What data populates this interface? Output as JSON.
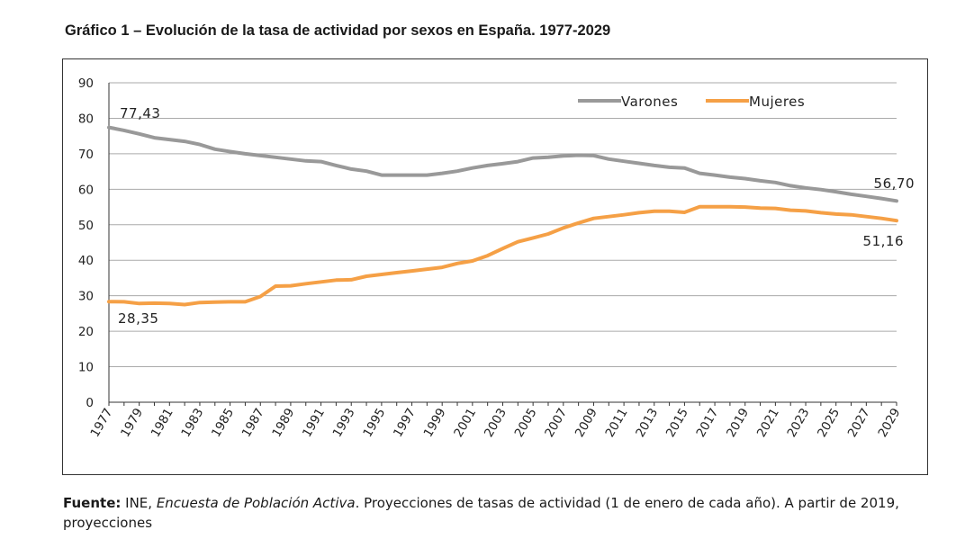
{
  "header": {
    "title": "Gráfico 1 – Evolución de la tasa de actividad por sexos en España. 1977-2029"
  },
  "footer": {
    "source_label": "Fuente:",
    "source_text_1": " INE, ",
    "source_italic": "Encuesta de Población Activa",
    "source_text_2": ". Proyecciones de tasas de actividad (1 de enero de cada año). A partir de 2019, proyecciones"
  },
  "colors": {
    "varones": "#999999",
    "mujeres": "#f5a046",
    "grid": "#aaaaaa",
    "axis": "#333333"
  },
  "chart_data": {
    "type": "line",
    "title": "",
    "xlabel": "",
    "ylabel": "",
    "ylim": [
      0,
      90
    ],
    "yticks": [
      0,
      10,
      20,
      30,
      40,
      50,
      60,
      70,
      80,
      90
    ],
    "grid": true,
    "legend_placement": "top-right",
    "x": [
      1977,
      1978,
      1979,
      1980,
      1981,
      1982,
      1983,
      1984,
      1985,
      1986,
      1987,
      1988,
      1989,
      1990,
      1991,
      1992,
      1993,
      1994,
      1995,
      1996,
      1997,
      1998,
      1999,
      2000,
      2001,
      2002,
      2003,
      2004,
      2005,
      2006,
      2007,
      2008,
      2009,
      2010,
      2011,
      2012,
      2013,
      2014,
      2015,
      2016,
      2017,
      2018,
      2019,
      2020,
      2021,
      2022,
      2023,
      2024,
      2025,
      2026,
      2027,
      2028,
      2029
    ],
    "xtick_labels": [
      "1977",
      "1979",
      "1981",
      "1983",
      "1985",
      "1987",
      "1989",
      "1991",
      "1993",
      "1995",
      "1997",
      "1999",
      "2001",
      "2003",
      "2005",
      "2007",
      "2009",
      "2011",
      "2013",
      "2015",
      "2017",
      "2019",
      "2021",
      "2023",
      "2025",
      "2027",
      "2029"
    ],
    "series": [
      {
        "name": "Varones",
        "values": [
          77.43,
          76.6,
          75.6,
          74.5,
          74.0,
          73.5,
          72.6,
          71.3,
          70.6,
          70.0,
          69.5,
          69.0,
          68.5,
          68.0,
          67.8,
          66.7,
          65.7,
          65.1,
          64.0,
          64.0,
          64.0,
          64.0,
          64.5,
          65.1,
          66.0,
          66.7,
          67.2,
          67.8,
          68.8,
          69.0,
          69.4,
          69.6,
          69.5,
          68.5,
          67.9,
          67.3,
          66.7,
          66.2,
          66.0,
          64.5,
          64.0,
          63.4,
          63.0,
          62.4,
          61.9,
          61.0,
          60.4,
          59.9,
          59.3,
          58.6,
          58.0,
          57.4,
          56.7
        ]
      },
      {
        "name": "Mujeres",
        "values": [
          28.35,
          28.3,
          27.8,
          27.9,
          27.8,
          27.5,
          28.1,
          28.2,
          28.3,
          28.3,
          29.8,
          32.7,
          32.8,
          33.4,
          33.9,
          34.4,
          34.5,
          35.5,
          36.0,
          36.5,
          37.0,
          37.5,
          38.0,
          39.1,
          39.8,
          41.3,
          43.3,
          45.2,
          46.3,
          47.4,
          49.1,
          50.5,
          51.8,
          52.3,
          52.8,
          53.4,
          53.8,
          53.8,
          53.5,
          55.1,
          55.1,
          55.1,
          55.0,
          54.7,
          54.6,
          54.1,
          53.9,
          53.4,
          53.0,
          52.8,
          52.3,
          51.8,
          51.16
        ]
      }
    ],
    "data_labels": [
      {
        "series": "Varones",
        "x": 1977,
        "text": "77,43"
      },
      {
        "series": "Varones",
        "x": 2029,
        "text": "56,70"
      },
      {
        "series": "Mujeres",
        "x": 1977,
        "text": "28,35"
      },
      {
        "series": "Mujeres",
        "x": 2029,
        "text": "51,16"
      }
    ]
  }
}
